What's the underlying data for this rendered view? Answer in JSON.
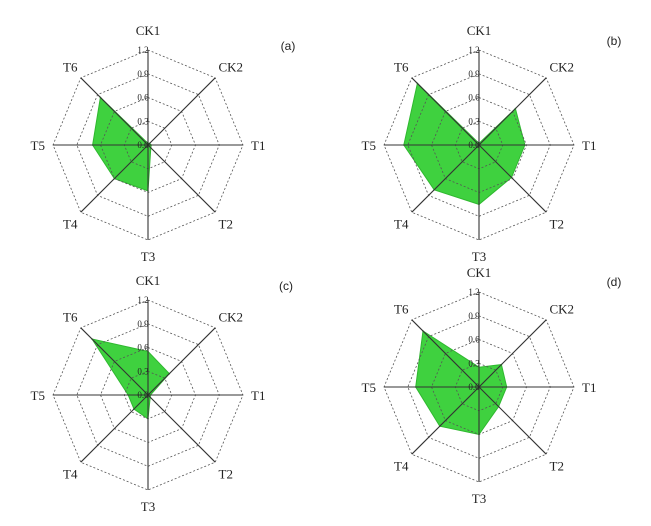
{
  "colors": {
    "fill": "#3fd13f",
    "stroke": "#2fb82f",
    "grid": "#555555",
    "axis": "#333333"
  },
  "chart_data": [
    {
      "type": "radar",
      "panel_label": "(a)",
      "axes": [
        "CK1",
        "CK2",
        "T1",
        "T2",
        "T3",
        "T4",
        "T5",
        "T6"
      ],
      "ticks": [
        "0.0",
        "0.3",
        "0.6",
        "0.9",
        "1.2"
      ],
      "range": [
        0,
        1.2
      ],
      "grid": true,
      "values": [
        0.02,
        0.03,
        0.04,
        0.05,
        0.58,
        0.6,
        0.7,
        0.85
      ]
    },
    {
      "type": "radar",
      "panel_label": "(b)",
      "axes": [
        "CK1",
        "CK2",
        "T1",
        "T2",
        "T3",
        "T4",
        "T5",
        "T6"
      ],
      "ticks": [
        "0.0",
        "0.3",
        "0.6",
        "0.9",
        "1.2"
      ],
      "range": [
        0,
        1.2
      ],
      "grid": true,
      "values": [
        0.02,
        0.65,
        0.58,
        0.58,
        0.75,
        0.8,
        0.95,
        1.1
      ]
    },
    {
      "type": "radar",
      "panel_label": "(c)",
      "axes": [
        "CK1",
        "CK2",
        "T1",
        "T2",
        "T3",
        "T4",
        "T5",
        "T6"
      ],
      "ticks": [
        "0.0",
        "0.3",
        "0.6",
        "0.9",
        "1.2"
      ],
      "range": [
        0,
        1.2
      ],
      "grid": true,
      "values": [
        0.55,
        0.38,
        0.03,
        0.04,
        0.3,
        0.25,
        0.25,
        1.0
      ]
    },
    {
      "type": "radar",
      "panel_label": "(d)",
      "axes": [
        "CK1",
        "CK2",
        "T1",
        "T2",
        "T3",
        "T4",
        "T5",
        "T6"
      ],
      "ticks": [
        "0.0",
        "0.3",
        "0.6",
        "0.9",
        "1.2"
      ],
      "range": [
        0,
        1.2
      ],
      "grid": true,
      "values": [
        0.25,
        0.4,
        0.35,
        0.35,
        0.6,
        0.7,
        0.8,
        1.0
      ]
    }
  ]
}
